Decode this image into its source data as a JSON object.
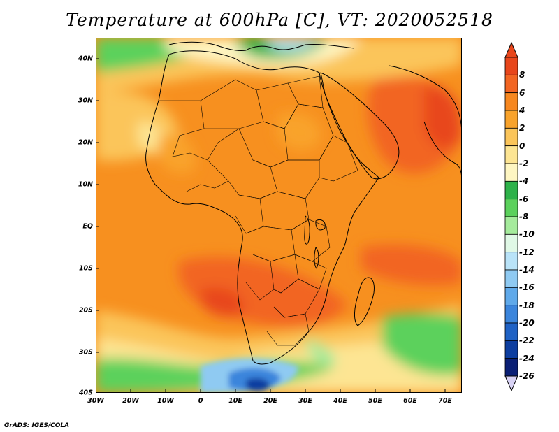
{
  "title": "Temperature at 600hPa [C], VT: 2020052518",
  "footer": "GrADS: IGES/COLA",
  "lat_labels": [
    "40N",
    "30N",
    "20N",
    "10N",
    "EQ",
    "10S",
    "20S",
    "30S",
    "40S"
  ],
  "lon_labels": [
    "30W",
    "20W",
    "10W",
    "0",
    "10E",
    "20E",
    "30E",
    "40E",
    "50E",
    "60E",
    "70E"
  ],
  "colorbar": {
    "labels": [
      "8",
      "6",
      "4",
      "2",
      "0",
      "-2",
      "-4",
      "-6",
      "-8",
      "-10",
      "-12",
      "-14",
      "-16",
      "-18",
      "-20",
      "-22",
      "-24",
      "-26"
    ],
    "colors": [
      "#e8461b",
      "#f26522",
      "#f7871f",
      "#f9a32b",
      "#fbc55a",
      "#fde593",
      "#fef6c2",
      "#2eb24a",
      "#5bd15c",
      "#a5eb9c",
      "#e0f8e6",
      "#b9e3f8",
      "#8fcaf2",
      "#5fa9ea",
      "#3b85dc",
      "#1f62c5",
      "#0d3ea0",
      "#0a1f75"
    ]
  },
  "chart_data": {
    "type": "heatmap",
    "title": "Temperature at 600hPa [C], VT: 2020052518",
    "units": "C",
    "lon_range": [
      "30W",
      "75E"
    ],
    "lat_range": [
      "40S",
      "45N"
    ],
    "color_scale_min": -26,
    "color_scale_max": 8,
    "notes": "Warmest (4 to 8 C) over Saudi Arabia, northwest India and southern Africa (Angola–Zambia); coldest (-20 to -26 C) south of South Africa near 40S 20E; cool (-4 to -8 C) over the Mediterranean and the far south Atlantic / Indian Ocean."
  }
}
